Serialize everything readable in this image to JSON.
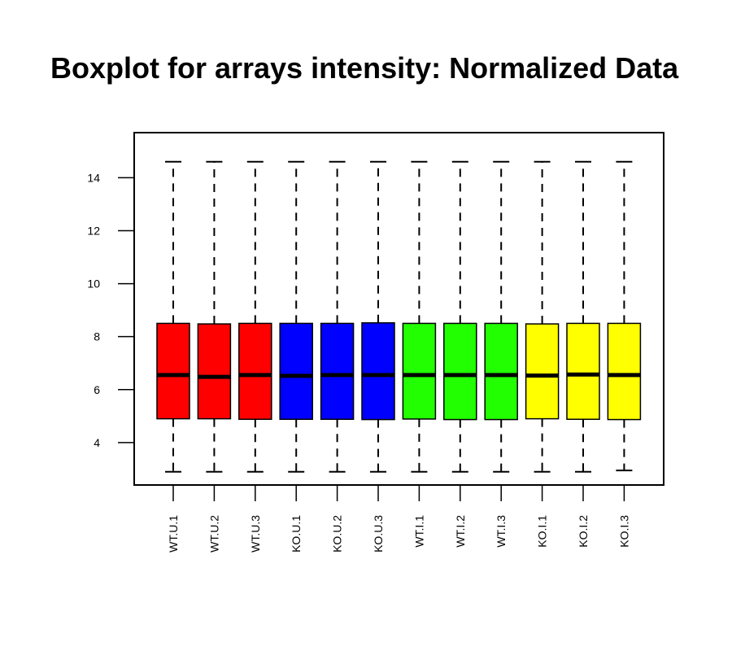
{
  "chart_data": {
    "type": "boxplot",
    "title": "Boxplot for arrays intensity: Normalized Data",
    "xlabel": "",
    "ylabel": "",
    "ylim": [
      2.4,
      15.7
    ],
    "yticks": [
      4,
      6,
      8,
      10,
      12,
      14
    ],
    "grid": false,
    "legend": "none",
    "categories": [
      "WT.U.1",
      "WT.U.2",
      "WT.U.3",
      "KO.U.1",
      "KO.U.2",
      "KO.U.3",
      "WT.I.1",
      "WT.I.2",
      "WT.I.3",
      "KO.I.1",
      "KO.I.2",
      "KO.I.3"
    ],
    "boxes": [
      {
        "min": 2.9,
        "q1": 4.9,
        "median": 6.55,
        "q3": 8.5,
        "max": 14.6,
        "color": "#ff0000"
      },
      {
        "min": 2.9,
        "q1": 4.9,
        "median": 6.48,
        "q3": 8.48,
        "max": 14.6,
        "color": "#ff0000"
      },
      {
        "min": 2.9,
        "q1": 4.88,
        "median": 6.55,
        "q3": 8.5,
        "max": 14.6,
        "color": "#ff0000"
      },
      {
        "min": 2.9,
        "q1": 4.88,
        "median": 6.52,
        "q3": 8.5,
        "max": 14.6,
        "color": "#0000ff"
      },
      {
        "min": 2.9,
        "q1": 4.88,
        "median": 6.55,
        "q3": 8.5,
        "max": 14.6,
        "color": "#0000ff"
      },
      {
        "min": 2.9,
        "q1": 4.87,
        "median": 6.55,
        "q3": 8.52,
        "max": 14.6,
        "color": "#0000ff"
      },
      {
        "min": 2.9,
        "q1": 4.89,
        "median": 6.55,
        "q3": 8.5,
        "max": 14.6,
        "color": "#22ff00"
      },
      {
        "min": 2.9,
        "q1": 4.87,
        "median": 6.55,
        "q3": 8.5,
        "max": 14.6,
        "color": "#22ff00"
      },
      {
        "min": 2.9,
        "q1": 4.87,
        "median": 6.55,
        "q3": 8.5,
        "max": 14.6,
        "color": "#22ff00"
      },
      {
        "min": 2.9,
        "q1": 4.9,
        "median": 6.53,
        "q3": 8.48,
        "max": 14.6,
        "color": "#ffff00"
      },
      {
        "min": 2.9,
        "q1": 4.88,
        "median": 6.57,
        "q3": 8.5,
        "max": 14.6,
        "color": "#ffff00"
      },
      {
        "min": 2.95,
        "q1": 4.87,
        "median": 6.55,
        "q3": 8.5,
        "max": 14.6,
        "color": "#ffff00"
      }
    ]
  }
}
